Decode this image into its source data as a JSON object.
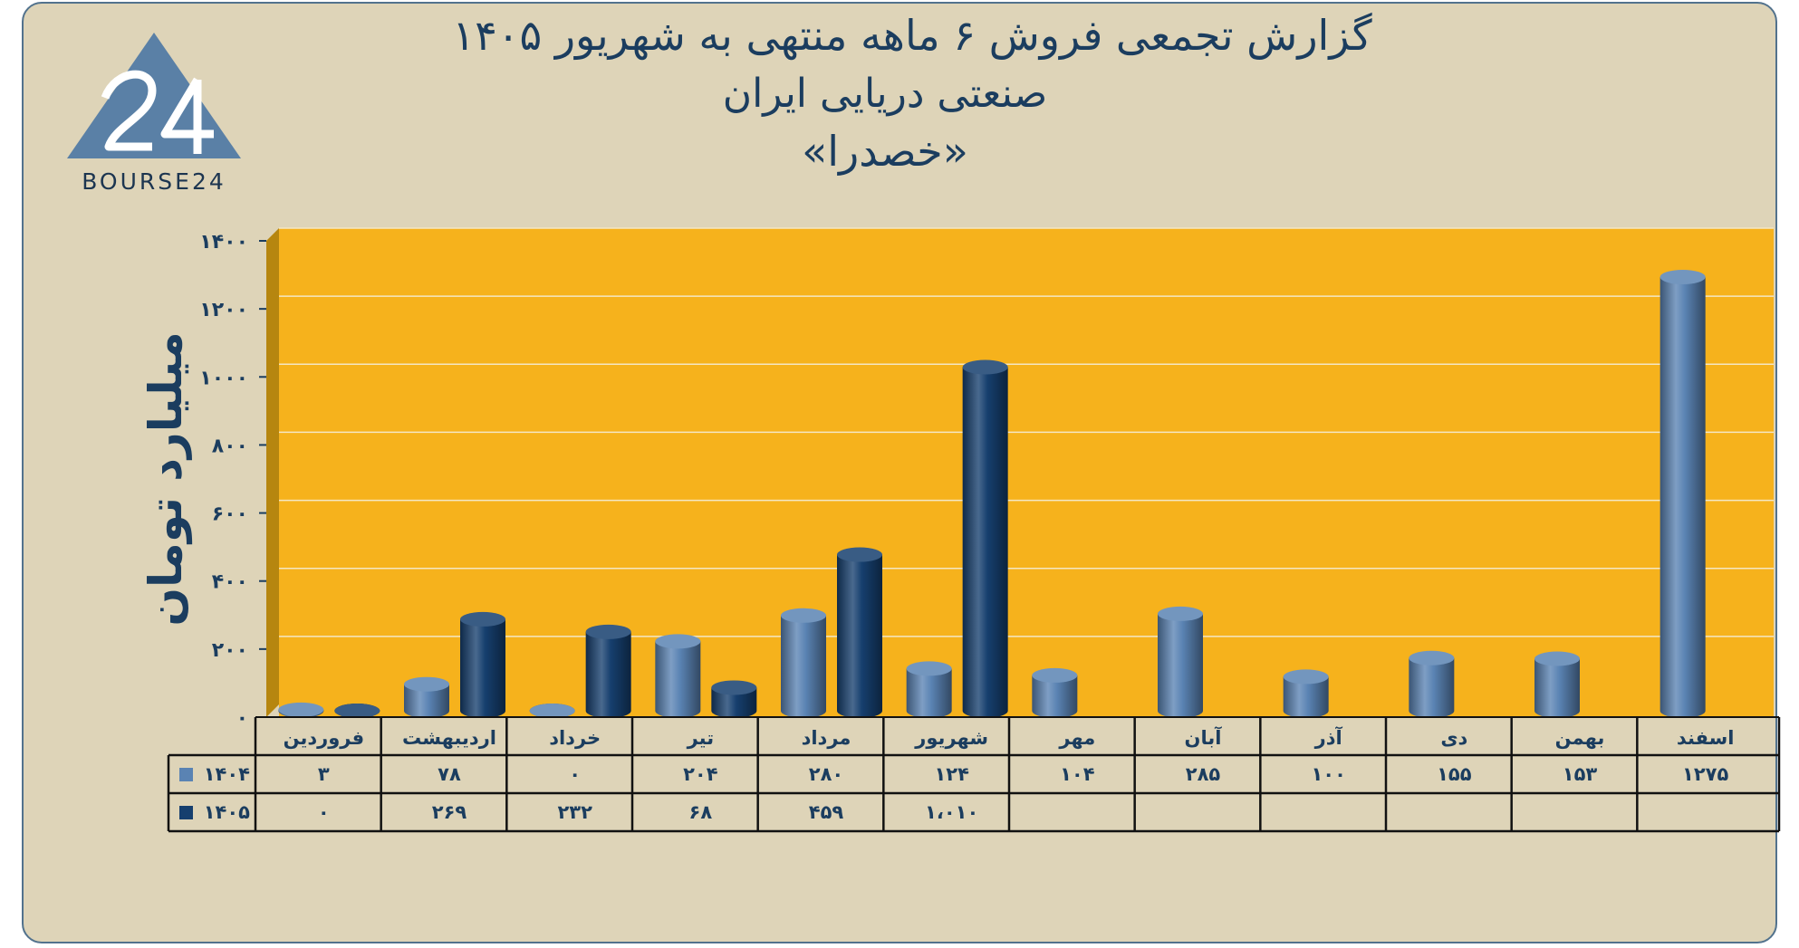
{
  "header": {
    "title_line1": "گزارش تجمعی فروش ۶ ماهه منتهی به شهریور ۱۴۰۵",
    "title_line2": "صنعتی دریایی ایران",
    "title_line3": "«خصدرا»"
  },
  "logo": {
    "mark": "24",
    "text": "BOURSE24",
    "icon": "bourse24-triangle-logo"
  },
  "colors": {
    "background": "#ded4b8",
    "plot": "#f6b21c",
    "wall": "#b6860f",
    "series_1404": "#5a83b3",
    "series_1405": "#163f6e",
    "text": "#1b3d5f"
  },
  "chart_data": {
    "type": "bar",
    "ylabel": "میلیارد تومان",
    "ylim": [
      0,
      1400
    ],
    "yticks": [
      0,
      200,
      400,
      600,
      800,
      1000,
      1200,
      1400
    ],
    "ytick_labels": [
      "۰",
      "۲۰۰",
      "۴۰۰",
      "۶۰۰",
      "۸۰۰",
      "۱۰۰۰",
      "۱۲۰۰",
      "۱۴۰۰"
    ],
    "categories": [
      "فروردین",
      "اردیبهشت",
      "خرداد",
      "تیر",
      "مرداد",
      "شهریور",
      "مهر",
      "آبان",
      "آذر",
      "دی",
      "بهمن",
      "اسفند"
    ],
    "series": [
      {
        "name": "۱۴۰۴",
        "values": [
          3,
          78,
          0,
          204,
          280,
          124,
          104,
          285,
          100,
          155,
          153,
          1275
        ],
        "labels": [
          "۳",
          "۷۸",
          "۰",
          "۲۰۴",
          "۲۸۰",
          "۱۲۴",
          "۱۰۴",
          "۲۸۵",
          "۱۰۰",
          "۱۵۵",
          "۱۵۳",
          "۱۲۷۵"
        ]
      },
      {
        "name": "۱۴۰۵",
        "values": [
          0,
          269,
          232,
          68,
          459,
          1010,
          null,
          null,
          null,
          null,
          null,
          null
        ],
        "labels": [
          "۰",
          "۲۶۹",
          "۲۳۲",
          "۶۸",
          "۴۵۹",
          "۱،۰۱۰",
          "",
          "",
          "",
          "",
          "",
          ""
        ]
      }
    ],
    "grid": true,
    "legend": "data-table"
  }
}
